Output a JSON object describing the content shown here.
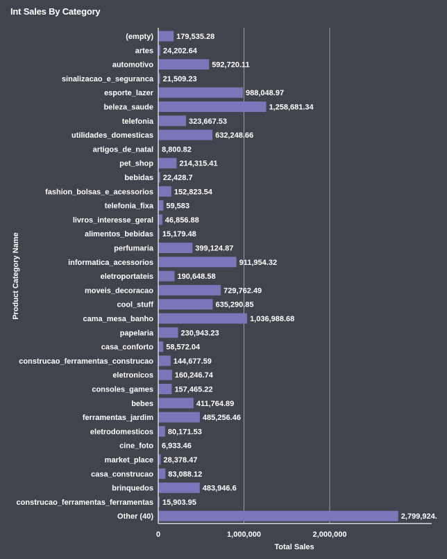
{
  "chart_data": {
    "type": "bar",
    "orientation": "horizontal",
    "title": "Int Sales By Category",
    "xlabel": "Total Sales",
    "ylabel": "Product Category Name",
    "xlim": [
      0,
      3200000
    ],
    "xticks": [
      0,
      1000000,
      2000000
    ],
    "xtick_labels": [
      "0",
      "1,000,000",
      "2,000,000"
    ],
    "grid": "vertical",
    "bar_color": "#7a76ba",
    "categories": [
      "(empty)",
      "artes",
      "automotivo",
      "sinalizacao_e_seguranca",
      "esporte_lazer",
      "beleza_saude",
      "telefonia",
      "utilidades_domesticas",
      "artigos_de_natal",
      "pet_shop",
      "bebidas",
      "fashion_bolsas_e_acessorios",
      "telefonia_fixa",
      "livros_interesse_geral",
      "alimentos_bebidas",
      "perfumaria",
      "informatica_acessorios",
      "eletroportateis",
      "moveis_decoracao",
      "cool_stuff",
      "cama_mesa_banho",
      "papelaria",
      "casa_conforto",
      "construcao_ferramentas_construcao",
      "eletronicos",
      "consoles_games",
      "bebes",
      "ferramentas_jardim",
      "eletrodomesticos",
      "cine_foto",
      "market_place",
      "casa_construcao",
      "brinquedos",
      "construcao_ferramentas_ferramentas",
      "Other (40)"
    ],
    "values": [
      179535.28,
      24202.64,
      592720.11,
      21509.23,
      988048.97,
      1258681.34,
      323667.53,
      632248.66,
      8800.82,
      214315.41,
      22428.7,
      152823.54,
      59583,
      46856.88,
      15179.48,
      399124.87,
      911954.32,
      190648.58,
      729762.49,
      635290.85,
      1036988.68,
      230943.23,
      58572.04,
      144677.59,
      160246.74,
      157465.22,
      411764.89,
      485256.46,
      80171.53,
      6933.46,
      28378.47,
      83088.12,
      483946.6,
      15903.95,
      2799924
    ],
    "value_labels": [
      "179,535.28",
      "24,202.64",
      "592,720.11",
      "21,509.23",
      "988,048.97",
      "1,258,681.34",
      "323,667.53",
      "632,248.66",
      "8,800.82",
      "214,315.41",
      "22,428.7",
      "152,823.54",
      "59,583",
      "46,856.88",
      "15,179.48",
      "399,124.87",
      "911,954.32",
      "190,648.58",
      "729,762.49",
      "635,290.85",
      "1,036,988.68",
      "230,943.23",
      "58,572.04",
      "144,677.59",
      "160,246.74",
      "157,465.22",
      "411,764.89",
      "485,256.46",
      "80,171.53",
      "6,933.46",
      "28,378.47",
      "83,088.12",
      "483,946.6",
      "15,903.95",
      "2,799,924."
    ]
  }
}
